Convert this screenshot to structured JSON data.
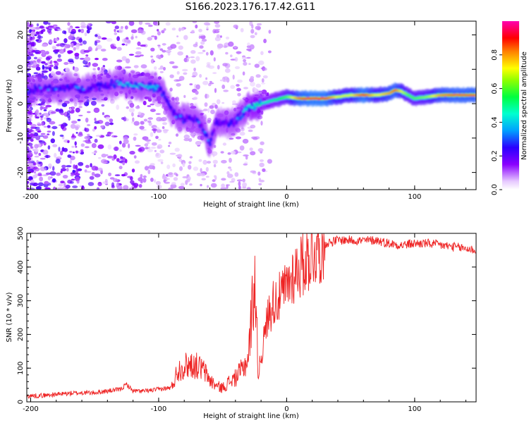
{
  "title": "S166.2023.176.17.42.G11",
  "chart_data": [
    {
      "type": "heatmap",
      "title": "",
      "xlabel": "Height of straight line (km)",
      "ylabel": "Frequency (Hz)",
      "xlim": [
        -203,
        148
      ],
      "ylim": [
        -25,
        24
      ],
      "x_ticks": [
        -200,
        -100,
        0,
        100
      ],
      "y_ticks": [
        -20,
        -10,
        0,
        10,
        20
      ],
      "grid": false,
      "colorbar": {
        "label": "Normalized spectral amplitude",
        "range": [
          0,
          1
        ],
        "ticks": [
          0.0,
          0.2,
          0.4,
          0.6,
          0.8
        ]
      },
      "ridge": [
        {
          "x": -200,
          "y": 4
        },
        {
          "x": -190,
          "y": 4.5
        },
        {
          "x": -180,
          "y": 4
        },
        {
          "x": -170,
          "y": 5
        },
        {
          "x": -160,
          "y": 4
        },
        {
          "x": -150,
          "y": 5
        },
        {
          "x": -140,
          "y": 5.5
        },
        {
          "x": -130,
          "y": 6
        },
        {
          "x": -120,
          "y": 5.5
        },
        {
          "x": -110,
          "y": 5
        },
        {
          "x": -100,
          "y": 4.5
        },
        {
          "x": -95,
          "y": 2
        },
        {
          "x": -90,
          "y": -2
        },
        {
          "x": -85,
          "y": -4
        },
        {
          "x": -80,
          "y": -4.5
        },
        {
          "x": -75,
          "y": -4
        },
        {
          "x": -70,
          "y": -5
        },
        {
          "x": -65,
          "y": -7
        },
        {
          "x": -60,
          "y": -12
        },
        {
          "x": -55,
          "y": -5.5
        },
        {
          "x": -50,
          "y": -5.5
        },
        {
          "x": -45,
          "y": -6
        },
        {
          "x": -40,
          "y": -5
        },
        {
          "x": -35,
          "y": -3
        },
        {
          "x": -30,
          "y": -1
        },
        {
          "x": -20,
          "y": 0
        },
        {
          "x": -10,
          "y": 1
        },
        {
          "x": 0,
          "y": 2
        },
        {
          "x": 10,
          "y": 1.5
        },
        {
          "x": 20,
          "y": 1.5
        },
        {
          "x": 30,
          "y": 1.5
        },
        {
          "x": 40,
          "y": 2
        },
        {
          "x": 50,
          "y": 2.5
        },
        {
          "x": 60,
          "y": 2.5
        },
        {
          "x": 70,
          "y": 2.5
        },
        {
          "x": 80,
          "y": 3
        },
        {
          "x": 85,
          "y": 4
        },
        {
          "x": 90,
          "y": 3.5
        },
        {
          "x": 95,
          "y": 2.5
        },
        {
          "x": 100,
          "y": 1.5
        },
        {
          "x": 110,
          "y": 2
        },
        {
          "x": 120,
          "y": 2.5
        },
        {
          "x": 130,
          "y": 2.5
        },
        {
          "x": 148,
          "y": 2.5
        }
      ],
      "ridge_amplitude": [
        0.3,
        0.3,
        0.3,
        0.3,
        0.3,
        0.3,
        0.3,
        0.35,
        0.35,
        0.35,
        0.35,
        0.3,
        0.3,
        0.3,
        0.3,
        0.3,
        0.3,
        0.3,
        0.3,
        0.3,
        0.3,
        0.3,
        0.3,
        0.35,
        0.4,
        0.45,
        0.5,
        0.6,
        0.85,
        0.9,
        0.9,
        0.7,
        0.7,
        0.9,
        0.7,
        0.8,
        0.85,
        0.7,
        0.6,
        0.6,
        0.65,
        0.8,
        0.85,
        0.85
      ]
    },
    {
      "type": "line",
      "title": "",
      "xlabel": "Height of straight line (km)",
      "ylabel": "SNR (10 * v/v)",
      "xlim": [
        -203,
        148
      ],
      "ylim": [
        0,
        500
      ],
      "x_ticks": [
        -200,
        -100,
        0,
        100
      ],
      "y_ticks": [
        0,
        100,
        200,
        300,
        400,
        500
      ],
      "grid": false,
      "series": [
        {
          "color": "#ee2222",
          "x": [
            -203,
            -190,
            -180,
            -170,
            -160,
            -150,
            -140,
            -130,
            -125,
            -120,
            -110,
            -100,
            -90,
            -85,
            -80,
            -75,
            -70,
            -65,
            -60,
            -55,
            -50,
            -45,
            -40,
            -35,
            -30,
            -25,
            -22,
            -20,
            -15,
            -10,
            -5,
            0,
            5,
            10,
            15,
            20,
            25,
            30,
            35,
            40,
            50,
            60,
            70,
            80,
            90,
            100,
            110,
            120,
            130,
            140,
            148
          ],
          "y": [
            10,
            12,
            15,
            18,
            20,
            20,
            25,
            30,
            45,
            25,
            25,
            30,
            35,
            80,
            90,
            95,
            90,
            80,
            55,
            40,
            35,
            50,
            60,
            80,
            110,
            320,
            60,
            130,
            250,
            300,
            310,
            340,
            380,
            400,
            420,
            440,
            460,
            470,
            475,
            480,
            480,
            478,
            480,
            470,
            465,
            470,
            470,
            465,
            460,
            455,
            450
          ]
        }
      ]
    }
  ]
}
